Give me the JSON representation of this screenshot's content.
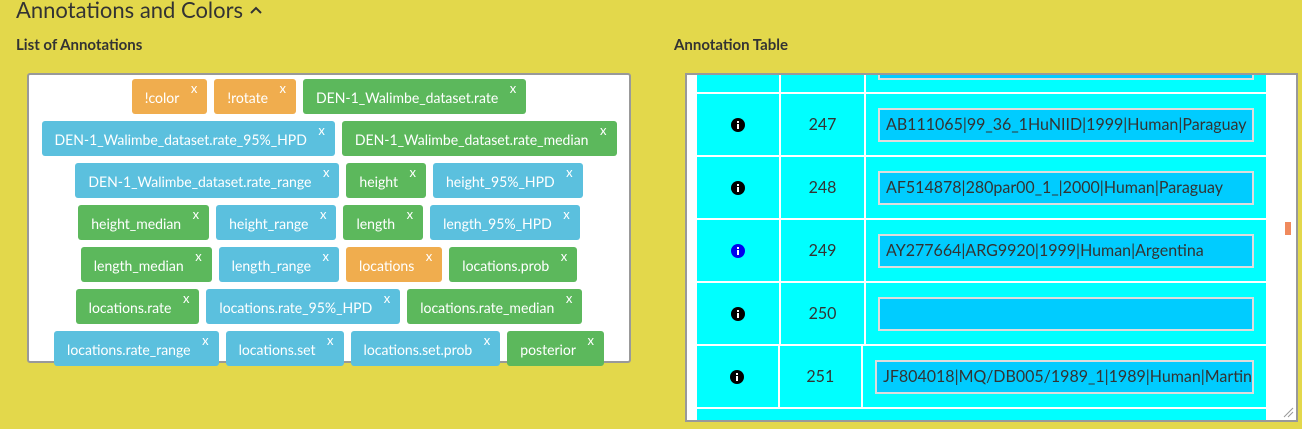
{
  "header": {
    "title": "Annotations and Colors"
  },
  "annotations": {
    "title": "List of Annotations",
    "close_label": "x",
    "tags": [
      {
        "text": "!color",
        "color": "#f0ad4e"
      },
      {
        "text": "!rotate",
        "color": "#f0ad4e"
      },
      {
        "text": "DEN-1_Walimbe_dataset.rate",
        "color": "#5cb85c"
      },
      {
        "text": "DEN-1_Walimbe_dataset.rate_95%_HPD",
        "color": "#5bc0de"
      },
      {
        "text": "DEN-1_Walimbe_dataset.rate_median",
        "color": "#5cb85c"
      },
      {
        "text": "DEN-1_Walimbe_dataset.rate_range",
        "color": "#5bc0de"
      },
      {
        "text": "height",
        "color": "#5cb85c"
      },
      {
        "text": "height_95%_HPD",
        "color": "#5bc0de"
      },
      {
        "text": "height_median",
        "color": "#5cb85c"
      },
      {
        "text": "height_range",
        "color": "#5bc0de"
      },
      {
        "text": "length",
        "color": "#5cb85c"
      },
      {
        "text": "length_95%_HPD",
        "color": "#5bc0de"
      },
      {
        "text": "length_median",
        "color": "#5cb85c"
      },
      {
        "text": "length_range",
        "color": "#5bc0de"
      },
      {
        "text": "locations",
        "color": "#f0ad4e"
      },
      {
        "text": "locations.prob",
        "color": "#5cb85c"
      },
      {
        "text": "locations.rate",
        "color": "#5cb85c"
      },
      {
        "text": "locations.rate_95%_HPD",
        "color": "#5bc0de"
      },
      {
        "text": "locations.rate_median",
        "color": "#5cb85c"
      },
      {
        "text": "locations.rate_range",
        "color": "#5bc0de"
      },
      {
        "text": "locations.set",
        "color": "#5bc0de"
      },
      {
        "text": "locations.set.prob",
        "color": "#5bc0de"
      },
      {
        "text": "posterior",
        "color": "#5cb85c"
      }
    ]
  },
  "table": {
    "title": "Annotation Table",
    "rows": [
      {
        "number": 247,
        "value": "AB111065|99_36_1HuNIID|1999|Human|Paraguay",
        "icon_color": "#000000"
      },
      {
        "number": 248,
        "value": "AF514878|280par00_1_|2000|Human|Paraguay",
        "icon_color": "#000000"
      },
      {
        "number": 249,
        "value": "AY277664|ARG9920|1999|Human|Argentina",
        "icon_color": "#0000ee"
      },
      {
        "number": 250,
        "icon_color": "#000000"
      },
      {
        "number": 251,
        "value": "JF804018|MQ/DB005/1989_1|1989|Human|Martin",
        "icon_color": "#000000"
      }
    ]
  }
}
